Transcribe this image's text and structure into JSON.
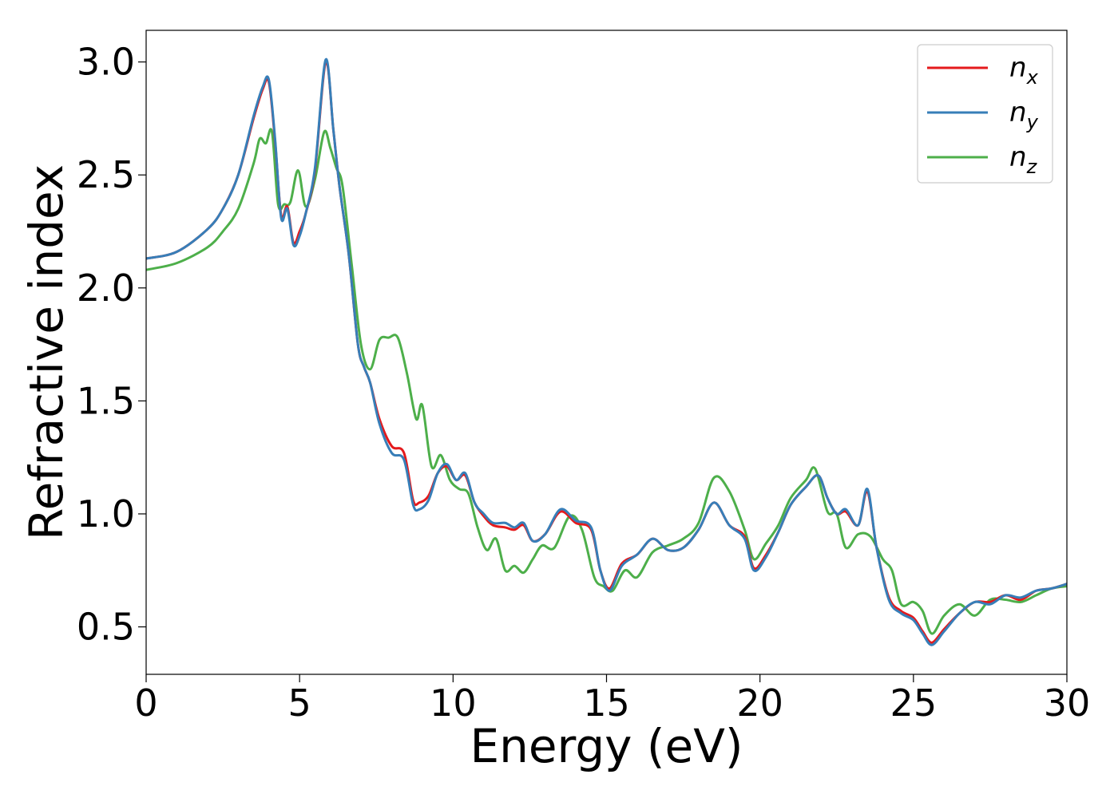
{
  "chart_data": {
    "type": "line",
    "xlabel": "Energy (eV)",
    "ylabel": "Refractive index",
    "xlim": [
      0,
      30
    ],
    "ylim": [
      0.29,
      3.14
    ],
    "xticks": [
      0,
      5,
      10,
      15,
      20,
      25,
      30
    ],
    "xtick_labels": [
      "0",
      "5",
      "10",
      "15",
      "20",
      "25",
      "30"
    ],
    "yticks": [
      0.5,
      1.0,
      1.5,
      2.0,
      2.5,
      3.0
    ],
    "ytick_labels": [
      "0.5",
      "1.0",
      "1.5",
      "2.0",
      "2.5",
      "3.0"
    ],
    "grid": false,
    "legend_position": "top-right",
    "series": [
      {
        "name": "n",
        "subscript": "x",
        "color": "#e41a1c",
        "x": [
          0,
          1,
          2,
          2.5,
          3,
          3.5,
          3.8,
          4.0,
          4.2,
          4.4,
          4.6,
          4.8,
          5.0,
          5.2,
          5.5,
          5.85,
          6.1,
          6.3,
          6.6,
          6.9,
          7.1,
          7.3,
          7.6,
          8.0,
          8.4,
          8.7,
          8.9,
          9.2,
          9.5,
          9.8,
          10.1,
          10.4,
          10.7,
          11.0,
          11.3,
          11.7,
          12.0,
          12.3,
          12.6,
          13.0,
          13.5,
          14.0,
          14.5,
          14.8,
          15.1,
          15.5,
          16.0,
          16.5,
          17.0,
          17.5,
          18.0,
          18.5,
          19.0,
          19.5,
          19.8,
          20.2,
          20.6,
          21.0,
          21.5,
          21.9,
          22.2,
          22.5,
          22.8,
          23.2,
          23.5,
          23.8,
          24.2,
          24.6,
          25.0,
          25.3,
          25.6,
          26.0,
          26.5,
          27.0,
          27.5,
          28.0,
          28.5,
          29.0,
          29.5,
          30.0
        ],
        "y": [
          2.13,
          2.16,
          2.26,
          2.35,
          2.5,
          2.75,
          2.88,
          2.91,
          2.65,
          2.32,
          2.36,
          2.2,
          2.25,
          2.33,
          2.52,
          3.0,
          2.7,
          2.45,
          2.15,
          1.75,
          1.65,
          1.58,
          1.42,
          1.3,
          1.27,
          1.06,
          1.05,
          1.08,
          1.18,
          1.21,
          1.15,
          1.17,
          1.05,
          0.99,
          0.95,
          0.94,
          0.93,
          0.95,
          0.88,
          0.91,
          1.01,
          0.96,
          0.93,
          0.75,
          0.67,
          0.78,
          0.82,
          0.89,
          0.84,
          0.85,
          0.93,
          1.05,
          0.95,
          0.9,
          0.76,
          0.82,
          0.92,
          1.04,
          1.12,
          1.17,
          1.07,
          1.0,
          1.01,
          0.95,
          1.1,
          0.85,
          0.63,
          0.57,
          0.54,
          0.48,
          0.43,
          0.49,
          0.56,
          0.61,
          0.61,
          0.64,
          0.62,
          0.66,
          0.67,
          0.69
        ]
      },
      {
        "name": "n",
        "subscript": "y",
        "color": "#377eb8",
        "x": [
          0,
          1,
          2,
          2.5,
          3,
          3.5,
          3.8,
          4.0,
          4.2,
          4.4,
          4.6,
          4.8,
          5.0,
          5.2,
          5.5,
          5.85,
          6.1,
          6.3,
          6.6,
          6.9,
          7.1,
          7.3,
          7.6,
          8.0,
          8.4,
          8.7,
          8.9,
          9.2,
          9.5,
          9.8,
          10.1,
          10.4,
          10.7,
          11.0,
          11.3,
          11.7,
          12.0,
          12.3,
          12.6,
          13.0,
          13.5,
          14.0,
          14.5,
          14.8,
          15.1,
          15.5,
          16.0,
          16.5,
          17.0,
          17.5,
          18.0,
          18.5,
          19.0,
          19.5,
          19.8,
          20.2,
          20.6,
          21.0,
          21.5,
          21.9,
          22.2,
          22.5,
          22.8,
          23.2,
          23.5,
          23.8,
          24.2,
          24.6,
          25.0,
          25.3,
          25.6,
          26.0,
          26.5,
          27.0,
          27.5,
          28.0,
          28.5,
          29.0,
          29.5,
          30.0
        ],
        "y": [
          2.13,
          2.16,
          2.26,
          2.35,
          2.5,
          2.76,
          2.89,
          2.92,
          2.66,
          2.31,
          2.35,
          2.19,
          2.23,
          2.33,
          2.53,
          3.01,
          2.7,
          2.45,
          2.15,
          1.75,
          1.65,
          1.58,
          1.4,
          1.27,
          1.24,
          1.04,
          1.02,
          1.06,
          1.18,
          1.22,
          1.15,
          1.18,
          1.05,
          1.0,
          0.96,
          0.96,
          0.94,
          0.96,
          0.88,
          0.91,
          1.02,
          0.97,
          0.94,
          0.75,
          0.66,
          0.77,
          0.82,
          0.89,
          0.84,
          0.85,
          0.93,
          1.05,
          0.95,
          0.89,
          0.75,
          0.81,
          0.92,
          1.04,
          1.12,
          1.17,
          1.07,
          1.0,
          1.02,
          0.95,
          1.11,
          0.85,
          0.62,
          0.56,
          0.53,
          0.47,
          0.42,
          0.48,
          0.56,
          0.61,
          0.6,
          0.64,
          0.63,
          0.66,
          0.67,
          0.69
        ]
      },
      {
        "name": "n",
        "subscript": "z",
        "color": "#4daf4a",
        "x": [
          0,
          1,
          2,
          2.5,
          3,
          3.5,
          3.7,
          3.9,
          4.1,
          4.3,
          4.5,
          4.7,
          4.95,
          5.2,
          5.5,
          5.8,
          6.0,
          6.2,
          6.4,
          6.7,
          7.0,
          7.3,
          7.6,
          7.9,
          8.2,
          8.5,
          8.8,
          9.0,
          9.3,
          9.6,
          9.9,
          10.2,
          10.5,
          10.8,
          11.1,
          11.4,
          11.7,
          12.0,
          12.3,
          12.6,
          12.9,
          13.3,
          13.8,
          14.2,
          14.6,
          14.9,
          15.2,
          15.6,
          16.0,
          16.5,
          17.0,
          17.5,
          18.0,
          18.5,
          19.0,
          19.5,
          19.8,
          20.2,
          20.6,
          21.0,
          21.5,
          21.8,
          22.2,
          22.5,
          22.8,
          23.2,
          23.6,
          24.0,
          24.3,
          24.6,
          25.0,
          25.3,
          25.6,
          26.0,
          26.5,
          27.0,
          27.5,
          28.0,
          28.5,
          29.0,
          29.5,
          30.0
        ],
        "y": [
          2.08,
          2.11,
          2.18,
          2.25,
          2.35,
          2.55,
          2.66,
          2.64,
          2.69,
          2.37,
          2.37,
          2.38,
          2.52,
          2.36,
          2.48,
          2.69,
          2.62,
          2.53,
          2.45,
          2.1,
          1.75,
          1.64,
          1.77,
          1.78,
          1.78,
          1.62,
          1.42,
          1.48,
          1.21,
          1.26,
          1.15,
          1.11,
          1.09,
          0.94,
          0.84,
          0.89,
          0.75,
          0.77,
          0.74,
          0.8,
          0.86,
          0.85,
          0.99,
          0.93,
          0.72,
          0.68,
          0.66,
          0.75,
          0.72,
          0.83,
          0.86,
          0.89,
          0.96,
          1.16,
          1.1,
          0.93,
          0.8,
          0.87,
          0.95,
          1.07,
          1.15,
          1.2,
          1.01,
          1.0,
          0.85,
          0.91,
          0.9,
          0.8,
          0.75,
          0.6,
          0.61,
          0.57,
          0.47,
          0.55,
          0.6,
          0.55,
          0.62,
          0.62,
          0.61,
          0.64,
          0.67,
          0.68
        ]
      }
    ]
  }
}
